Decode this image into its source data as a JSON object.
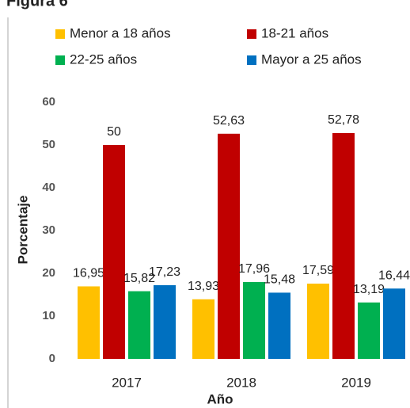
{
  "chart_data": {
    "type": "bar",
    "title": "Figura 6",
    "categories": [
      "2017",
      "2018",
      "2019"
    ],
    "series": [
      {
        "name": "Menor a 18 años",
        "color": "#FFC000",
        "values": [
          16.95,
          13.93,
          17.59
        ],
        "value_labels": [
          "16,95",
          "13,93",
          "17,59"
        ]
      },
      {
        "name": "18-21 años",
        "color": "#C00000",
        "values": [
          50,
          52.63,
          52.78
        ],
        "value_labels": [
          "50",
          "52,63",
          "52,78"
        ]
      },
      {
        "name": "22-25 años",
        "color": "#00B050",
        "values": [
          15.82,
          17.96,
          13.19
        ],
        "value_labels": [
          "15,82",
          "17,96",
          "13,19"
        ]
      },
      {
        "name": "Mayor a 25 años",
        "color": "#0070C0",
        "values": [
          17.23,
          15.48,
          16.44
        ],
        "value_labels": [
          "17,23",
          "15,48",
          "16,44"
        ]
      }
    ],
    "ylim": [
      0,
      60
    ],
    "yticks": [
      0,
      10,
      20,
      30,
      40,
      50,
      60
    ],
    "ylabel": "Porcentaje",
    "xlabel": "Año",
    "legend": "top",
    "grid": false
  }
}
